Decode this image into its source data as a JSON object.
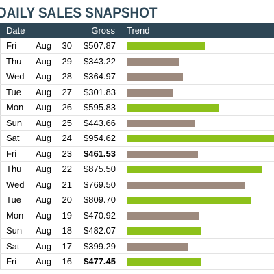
{
  "title": "DAILY SALES SNAPSHOT",
  "columns": {
    "date": "Date",
    "gross": "Gross",
    "trend": "Trend"
  },
  "colors": {
    "above": "#8dc11b",
    "below": "#9d8a7e",
    "header_bg": "#2e4655",
    "title": "#2d4757"
  },
  "rows": [
    {
      "day": "Fri",
      "month": "Aug",
      "date": "30",
      "gross": "$507.87",
      "value": 507.87,
      "trend": "above",
      "bold": false
    },
    {
      "day": "Thu",
      "month": "Aug",
      "date": "29",
      "gross": "$343.22",
      "value": 343.22,
      "trend": "below",
      "bold": false
    },
    {
      "day": "Wed",
      "month": "Aug",
      "date": "28",
      "gross": "$364.97",
      "value": 364.97,
      "trend": "below",
      "bold": false
    },
    {
      "day": "Tue",
      "month": "Aug",
      "date": "27",
      "gross": "$301.83",
      "value": 301.83,
      "trend": "below",
      "bold": false
    },
    {
      "day": "Mon",
      "month": "Aug",
      "date": "26",
      "gross": "$595.83",
      "value": 595.83,
      "trend": "above",
      "bold": false
    },
    {
      "day": "Sun",
      "month": "Aug",
      "date": "25",
      "gross": "$443.66",
      "value": 443.66,
      "trend": "below",
      "bold": false
    },
    {
      "day": "Sat",
      "month": "Aug",
      "date": "24",
      "gross": "$954.62",
      "value": 954.62,
      "trend": "above",
      "bold": false
    },
    {
      "day": "Fri",
      "month": "Aug",
      "date": "23",
      "gross": "$461.53",
      "value": 461.53,
      "trend": "below",
      "bold": true
    },
    {
      "day": "Thu",
      "month": "Aug",
      "date": "22",
      "gross": "$875.50",
      "value": 875.5,
      "trend": "above",
      "bold": false
    },
    {
      "day": "Wed",
      "month": "Aug",
      "date": "21",
      "gross": "$769.50",
      "value": 769.5,
      "trend": "below",
      "bold": false
    },
    {
      "day": "Tue",
      "month": "Aug",
      "date": "20",
      "gross": "$809.70",
      "value": 809.7,
      "trend": "above",
      "bold": false
    },
    {
      "day": "Mon",
      "month": "Aug",
      "date": "19",
      "gross": "$470.92",
      "value": 470.92,
      "trend": "below",
      "bold": false
    },
    {
      "day": "Sun",
      "month": "Aug",
      "date": "18",
      "gross": "$482.07",
      "value": 482.07,
      "trend": "above",
      "bold": false
    },
    {
      "day": "Sat",
      "month": "Aug",
      "date": "17",
      "gross": "$399.29",
      "value": 399.29,
      "trend": "below",
      "bold": false
    },
    {
      "day": "Fri",
      "month": "Aug",
      "date": "16",
      "gross": "$477.45",
      "value": 477.45,
      "trend": "above",
      "bold": true
    }
  ]
}
